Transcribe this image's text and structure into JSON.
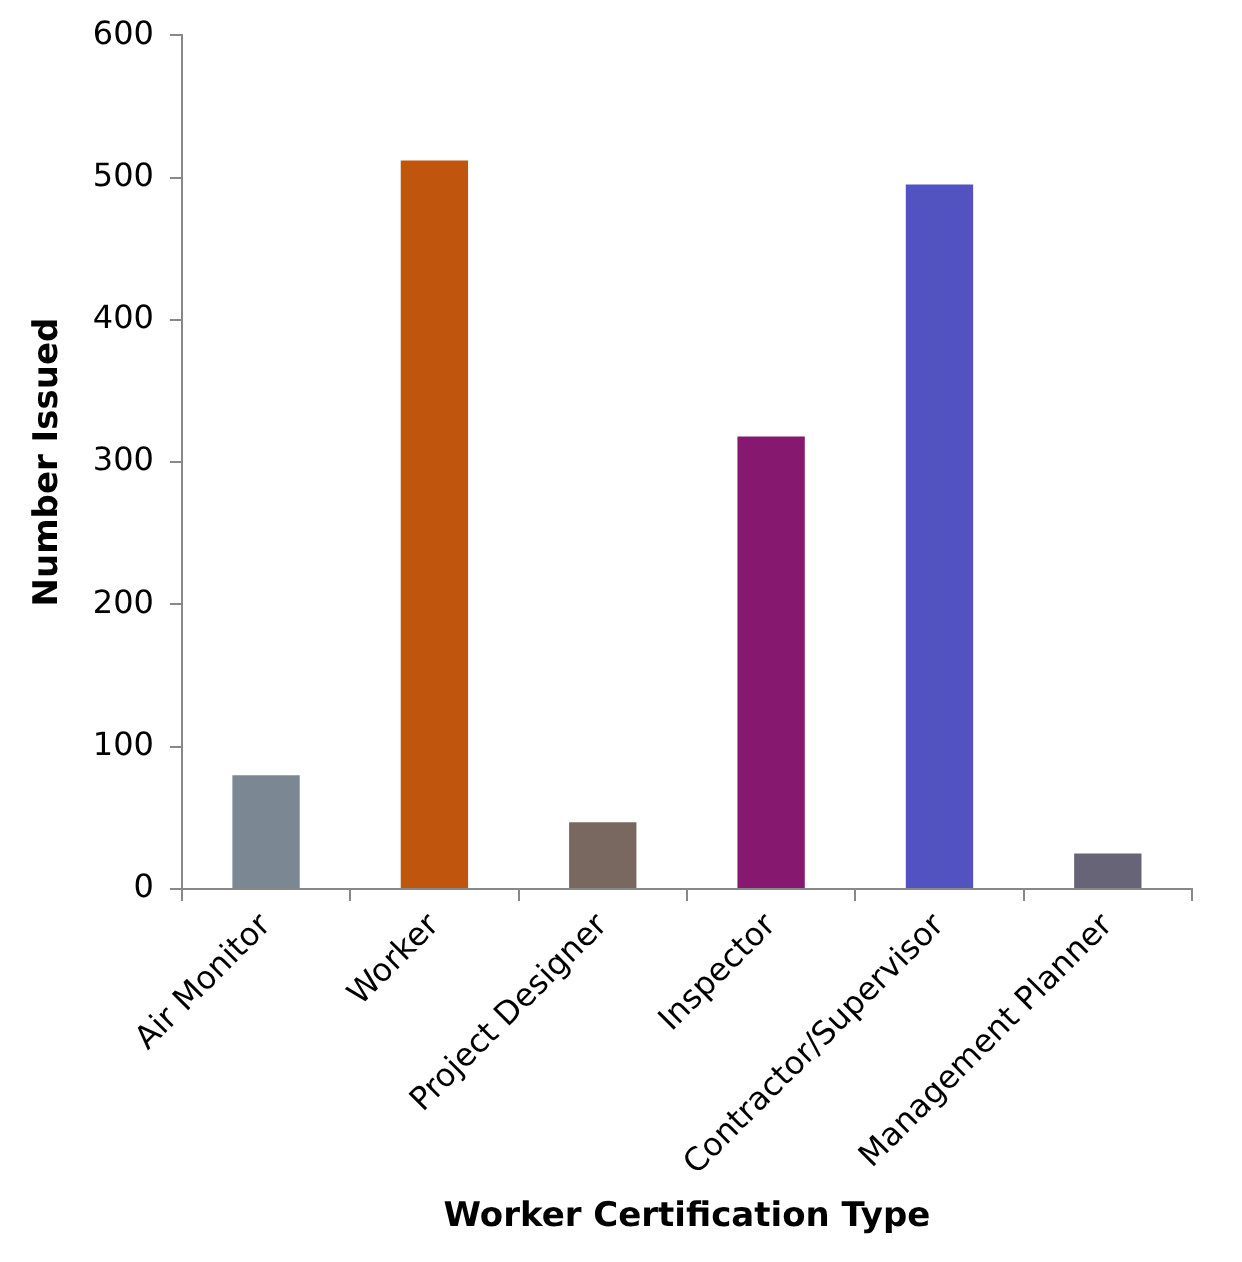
{
  "chart_data": {
    "type": "bar",
    "xlabel": "Worker Certification Type",
    "ylabel": "Number Issued",
    "categories": [
      "Air Monitor",
      "Worker",
      "Project Designer",
      "Inspector",
      "Contractor/Supervisor",
      "Management Planner"
    ],
    "values": [
      80,
      512,
      47,
      318,
      495,
      25
    ],
    "colors": [
      "#7b8894",
      "#c0560e",
      "#786860",
      "#861870",
      "#5252c0",
      "#686478"
    ],
    "ylim": [
      0,
      600
    ],
    "yticks": [
      0,
      100,
      200,
      300,
      400,
      500,
      600
    ],
    "grid": false,
    "legend": false
  }
}
